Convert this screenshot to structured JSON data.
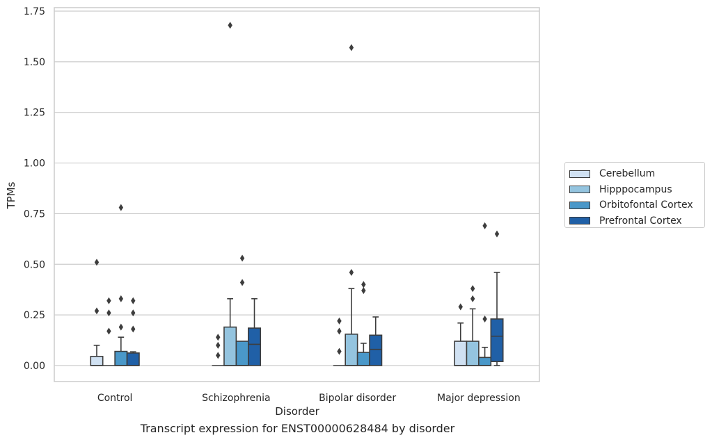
{
  "chart_data": {
    "type": "box",
    "title": "",
    "caption": "Transcript expression for ENST00000628484 by disorder",
    "xlabel": "Disorder",
    "ylabel": "TPMs",
    "ylim": [
      -0.08,
      1.76
    ],
    "yticks": [
      "0.00",
      "0.25",
      "0.50",
      "0.75",
      "1.00",
      "1.25",
      "1.50",
      "1.75"
    ],
    "ytick_values": [
      0,
      0.25,
      0.5,
      0.75,
      1.0,
      1.25,
      1.5,
      1.75
    ],
    "grid": "horizontal",
    "legend_position": "right",
    "categories": [
      "Control",
      "Schizophrenia",
      "Bipolar disorder",
      "Major depression"
    ],
    "series": [
      {
        "name": "Cerebellum",
        "color": "#d0e1f2",
        "boxes": [
          {
            "min": 0,
            "q1": 0,
            "median": 0,
            "q3": 0.045,
            "max": 0.1,
            "outliers": [
              0.27,
              0.51
            ]
          },
          {
            "min": 0,
            "q1": 0,
            "median": 0,
            "q3": 0,
            "max": 0,
            "outliers": [
              0.05,
              0.1,
              0.14
            ]
          },
          {
            "min": 0,
            "q1": 0,
            "median": 0,
            "q3": 0,
            "max": 0,
            "outliers": [
              0.07,
              0.17,
              0.22
            ]
          },
          {
            "min": 0,
            "q1": 0,
            "median": 0,
            "q3": 0.12,
            "max": 0.21,
            "outliers": [
              0.29
            ]
          }
        ]
      },
      {
        "name": "Hipppocampus",
        "color": "#94c4df",
        "boxes": [
          {
            "min": 0,
            "q1": 0,
            "median": 0,
            "q3": 0,
            "max": 0,
            "outliers": [
              0.17,
              0.26,
              0.32
            ]
          },
          {
            "min": 0,
            "q1": 0,
            "median": 0,
            "q3": 0.19,
            "max": 0.33,
            "outliers": [
              1.68
            ]
          },
          {
            "min": 0,
            "q1": 0,
            "median": 0,
            "q3": 0.155,
            "max": 0.38,
            "outliers": [
              0.46,
              1.57
            ]
          },
          {
            "min": 0,
            "q1": 0,
            "median": 0,
            "q3": 0.12,
            "max": 0.28,
            "outliers": [
              0.33,
              0.38
            ]
          }
        ]
      },
      {
        "name": "Orbitofontal Cortex",
        "color": "#4a98c9",
        "boxes": [
          {
            "min": 0,
            "q1": 0,
            "median": 0,
            "q3": 0.07,
            "max": 0.14,
            "outliers": [
              0.19,
              0.33,
              0.78
            ]
          },
          {
            "min": 0,
            "q1": 0,
            "median": 0,
            "q3": 0.12,
            "max": 0.12,
            "outliers": [
              0.41,
              0.53
            ]
          },
          {
            "min": 0,
            "q1": 0,
            "median": 0,
            "q3": 0.065,
            "max": 0.11,
            "outliers": [
              0.37,
              0.4
            ]
          },
          {
            "min": 0,
            "q1": 0,
            "median": 0,
            "q3": 0.04,
            "max": 0.09,
            "outliers": [
              0.23,
              0.69
            ]
          }
        ]
      },
      {
        "name": "Prefrontal Cortex",
        "color": "#2060a7",
        "boxes": [
          {
            "min": 0,
            "q1": 0,
            "median": 0,
            "q3": 0.062,
            "max": 0.068,
            "outliers": [
              0.18,
              0.26,
              0.32
            ]
          },
          {
            "min": 0,
            "q1": 0,
            "median": 0.105,
            "q3": 0.185,
            "max": 0.33,
            "outliers": []
          },
          {
            "min": 0,
            "q1": 0,
            "median": 0.08,
            "q3": 0.15,
            "max": 0.24,
            "outliers": []
          },
          {
            "min": 0,
            "q1": 0.02,
            "median": 0.145,
            "q3": 0.23,
            "max": 0.46,
            "outliers": [
              0.65
            ]
          }
        ]
      }
    ]
  }
}
